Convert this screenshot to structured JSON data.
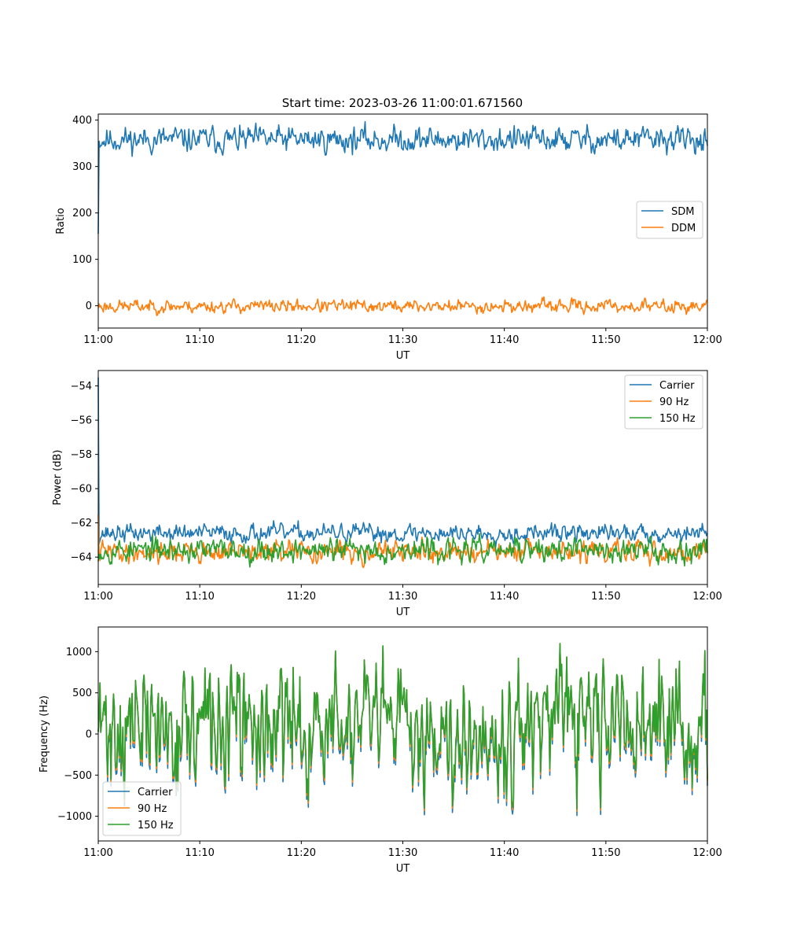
{
  "title": "Start time: 2023-03-26 11:00:01.671560",
  "colors": {
    "blue": "#1f77b4",
    "orange": "#ff7f0e",
    "green": "#2ca02c"
  },
  "chart_data": [
    {
      "type": "line",
      "xlabel": "UT",
      "ylabel": "Ratio",
      "xlim": [
        "11:00",
        "12:00"
      ],
      "x_ticks": [
        "11:00",
        "11:10",
        "11:20",
        "11:30",
        "11:40",
        "11:50",
        "12:00"
      ],
      "ylim": [
        -48,
        413
      ],
      "y_ticks": [
        0,
        100,
        200,
        300,
        400
      ],
      "y_tick_labels": [
        "0",
        "100",
        "200",
        "300",
        "400"
      ],
      "legend_loc": "center-right",
      "grid": false,
      "series": [
        {
          "name": "SDM",
          "color": "#1f77b4",
          "start": 155,
          "mean": 358,
          "noise": 16,
          "seed": 11
        },
        {
          "name": "DDM",
          "color": "#ff7f0e",
          "mean": -1,
          "noise": 8,
          "seed": 23
        }
      ]
    },
    {
      "type": "line",
      "xlabel": "UT",
      "ylabel": "Power (dB)",
      "xlim": [
        "11:00",
        "12:00"
      ],
      "x_ticks": [
        "11:00",
        "11:10",
        "11:20",
        "11:30",
        "11:40",
        "11:50",
        "12:00"
      ],
      "ylim": [
        -65.6,
        -53.1
      ],
      "y_ticks": [
        -64,
        -62,
        -60,
        -58,
        -56,
        -54
      ],
      "y_tick_labels": [
        "−64",
        "−62",
        "−60",
        "−58",
        "−56",
        "−54"
      ],
      "legend_loc": "top-right",
      "grid": false,
      "series": [
        {
          "name": "Carrier",
          "color": "#1f77b4",
          "start": -53.5,
          "mean": -62.6,
          "noise": 0.3,
          "seed": 37
        },
        {
          "name": "90 Hz",
          "color": "#ff7f0e",
          "start": -61.5,
          "mean": -63.7,
          "noise": 0.35,
          "seed": 41
        },
        {
          "name": "150 Hz",
          "color": "#2ca02c",
          "mean": -63.6,
          "noise": 0.4,
          "seed": 53
        }
      ]
    },
    {
      "type": "line",
      "xlabel": "UT",
      "ylabel": "Frequency (Hz)",
      "xlim": [
        "11:00",
        "12:00"
      ],
      "x_ticks": [
        "11:00",
        "11:10",
        "11:20",
        "11:30",
        "11:40",
        "11:50",
        "12:00"
      ],
      "ylim": [
        -1300,
        1300
      ],
      "y_ticks": [
        -1000,
        -500,
        0,
        500,
        1000
      ],
      "y_tick_labels": [
        "−1000",
        "−500",
        "0",
        "500",
        "1000"
      ],
      "legend_loc": "bottom-left",
      "grid": false,
      "series": [
        {
          "name": "Carrier",
          "color": "#1f77b4",
          "offset": -80,
          "mean": 80,
          "noise": 420,
          "seed": 71
        },
        {
          "name": "90 Hz",
          "color": "#ff7f0e",
          "offset": -30,
          "mean": 80,
          "noise": 420,
          "seed": 71
        },
        {
          "name": "150 Hz",
          "color": "#2ca02c",
          "offset": 0,
          "mean": 80,
          "noise": 420,
          "seed": 71
        }
      ]
    }
  ]
}
